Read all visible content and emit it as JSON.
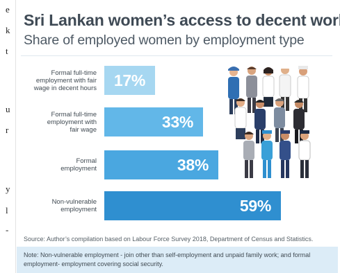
{
  "left_fragment": [
    "e",
    "k",
    "t",
    "u",
    "r",
    "y",
    "l",
    "-"
  ],
  "title": "Sri Lankan women’s access to decent work:",
  "subtitle": "Share of employed women by employment type",
  "chart_data": {
    "type": "bar",
    "orientation": "horizontal",
    "title": "Sri Lankan women’s access to decent work:",
    "subtitle": "Share of employed women by employment type",
    "categories": [
      "Formal full-time employment with fair wage in decent hours",
      "Formal full-time employment with fair wage",
      "Formal employment",
      "Non-vulnerable employment"
    ],
    "category_lines": [
      [
        "Formal full-time",
        "employment with fair",
        "wage in decent hours"
      ],
      [
        "Formal full-time",
        "employment with",
        "fair wage"
      ],
      [
        "Formal",
        "employment"
      ],
      [
        "Non-vulnerable",
        "employment"
      ]
    ],
    "values": [
      17,
      33,
      38,
      59
    ],
    "value_labels": [
      "17%",
      "33%",
      "38%",
      "59%"
    ],
    "xlim": [
      0,
      59
    ],
    "unit": "%",
    "grid": false,
    "legend": "none",
    "bar_colors": [
      "#a6d7f1",
      "#62b7e8",
      "#4aa7e0",
      "#2f8fd0"
    ]
  },
  "source": "Source: Author’s compilation based on Labour Force Survey 2018, Department of Census and Statistics.",
  "note_lines": [
    "Note: Non-vulnerable employment - join other than self-employment and unpaid family work; and formal",
    "employment- employment covering social security."
  ],
  "colors": {
    "title": "#3f4a55",
    "note_bg": "#dcecf7",
    "bar_text": "#ffffff"
  },
  "illustration": "workers-group-illustration"
}
